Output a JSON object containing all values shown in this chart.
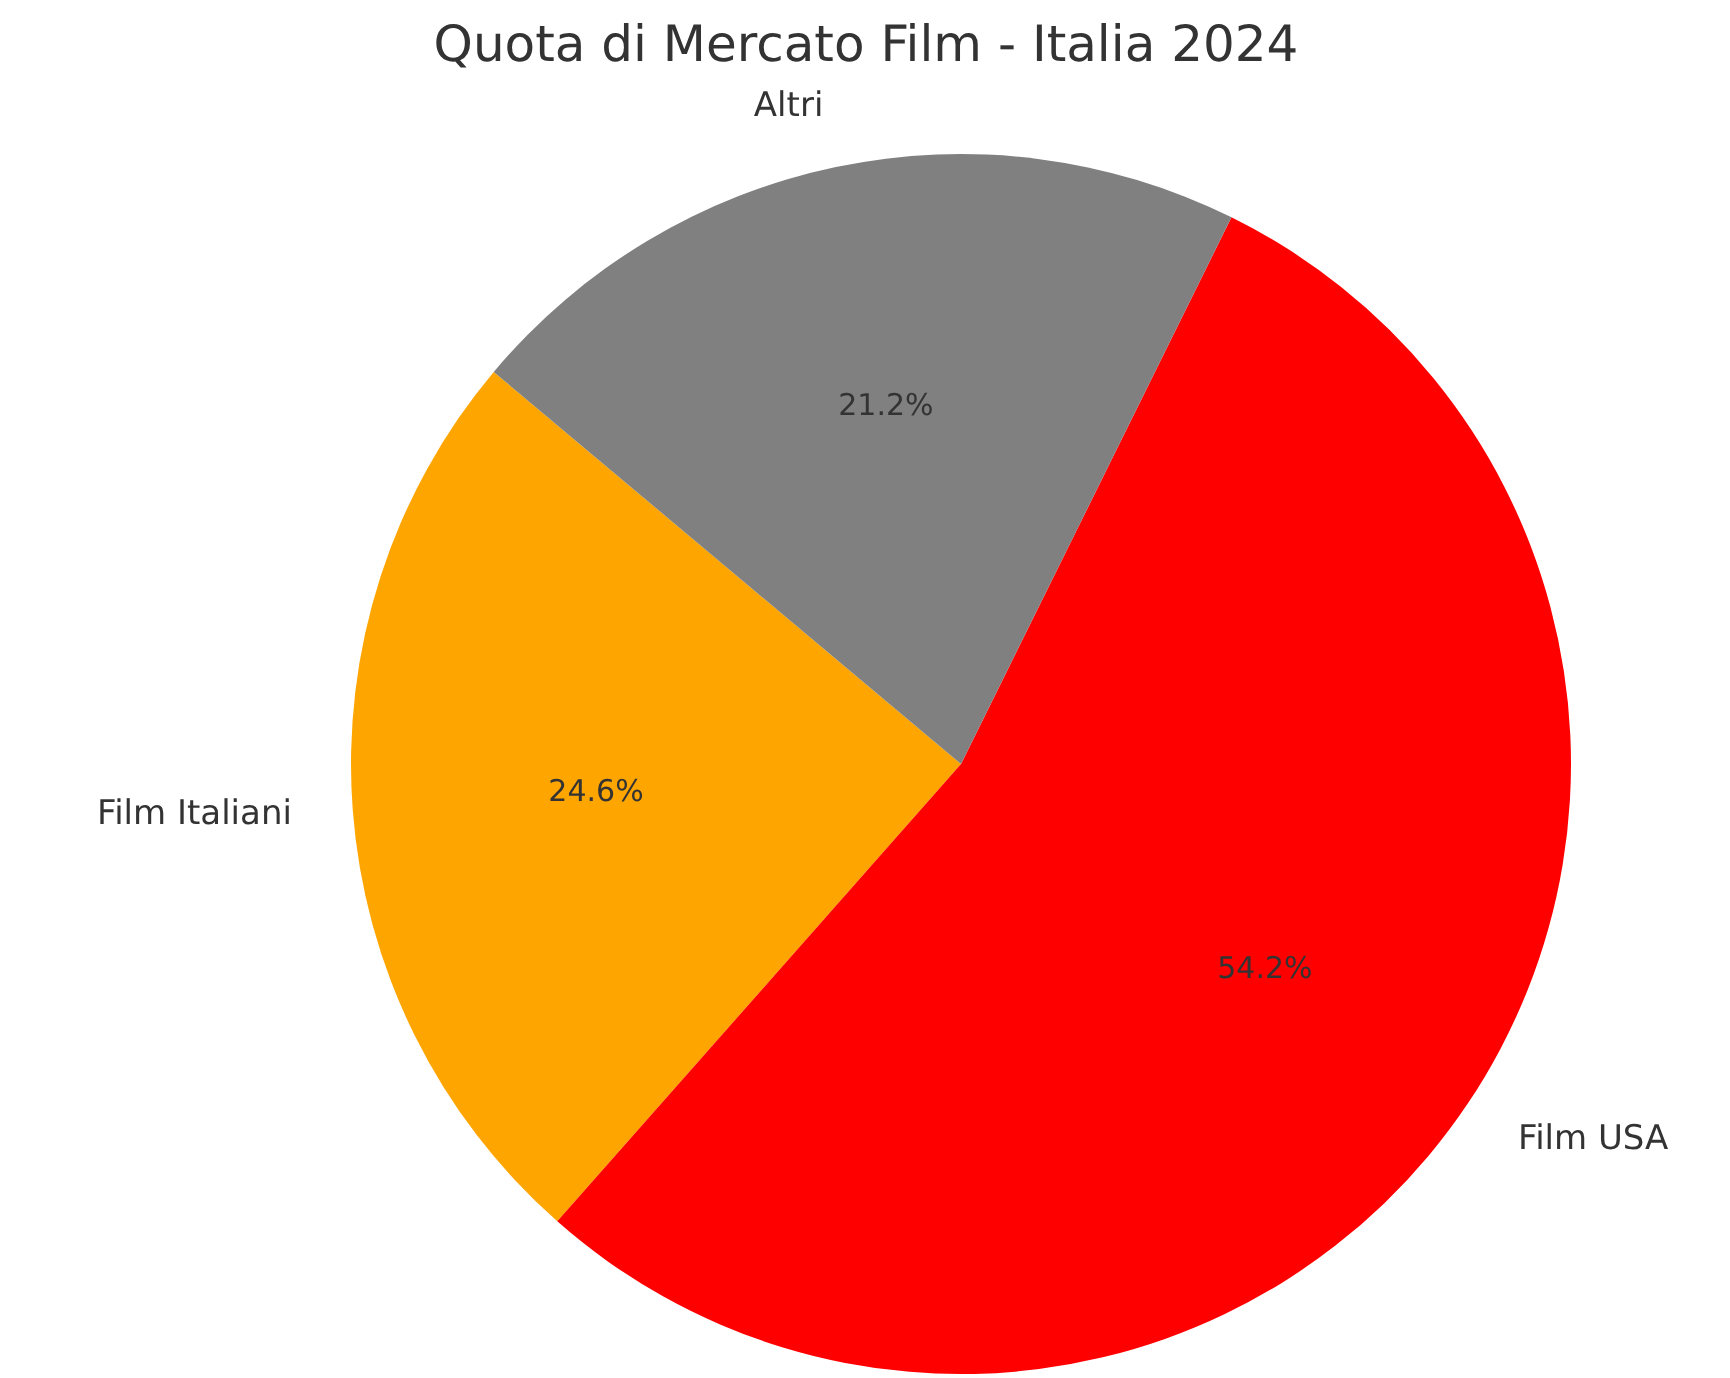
{
  "chart_data": {
    "type": "pie",
    "title": "Quota di Mercato Film - Italia 2024",
    "categories": [
      "Film Italiani",
      "Film USA",
      "Altri"
    ],
    "values": [
      24.6,
      54.2,
      21.2
    ],
    "colors": [
      "#ffa500",
      "#ff0000",
      "#808080"
    ],
    "value_labels": [
      "24.6%",
      "54.2%",
      "21.2%"
    ]
  }
}
